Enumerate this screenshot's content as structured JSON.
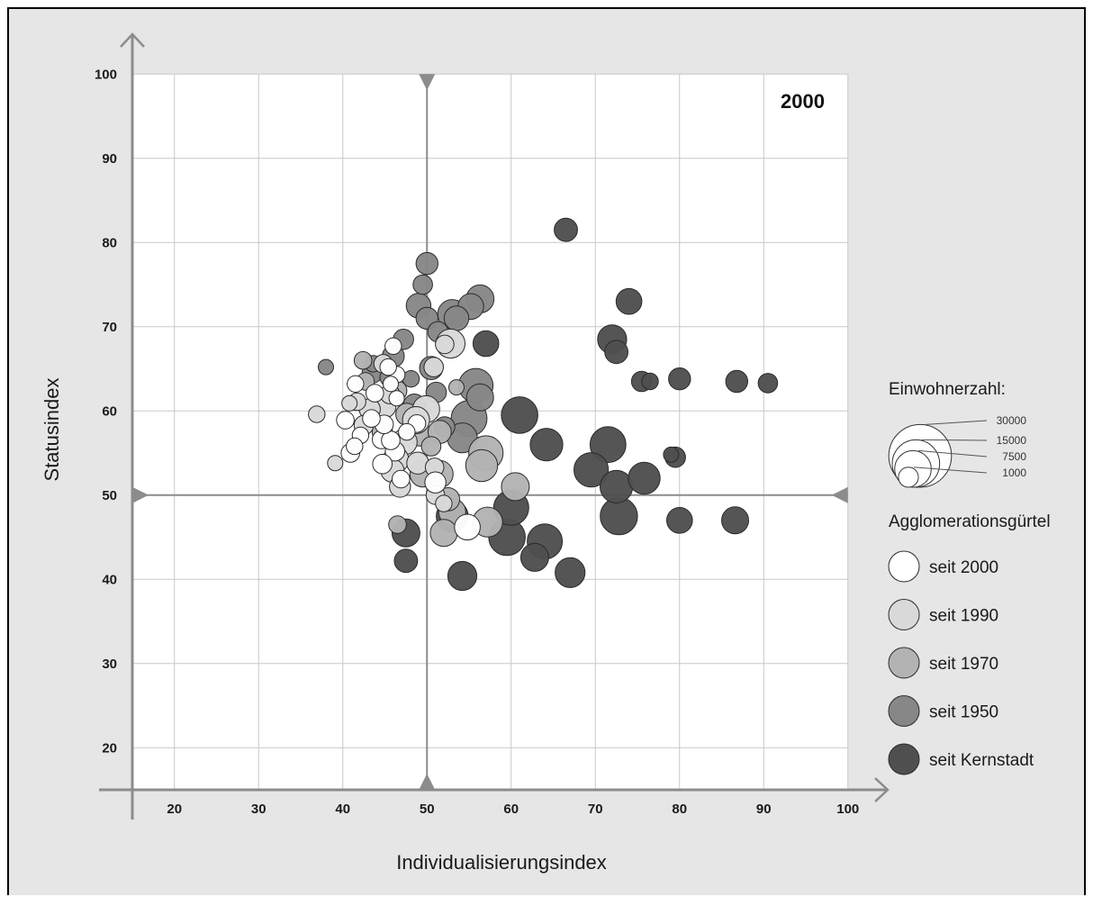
{
  "chart_data": {
    "type": "scatter",
    "subtype": "bubble",
    "year_label": "2000",
    "xlabel": "Individualisierungsindex",
    "ylabel": "Statusindex",
    "xlim": [
      15,
      100
    ],
    "ylim": [
      15,
      100
    ],
    "x_ticks": [
      20,
      30,
      40,
      50,
      60,
      70,
      80,
      90,
      100
    ],
    "y_ticks": [
      20,
      30,
      40,
      50,
      60,
      70,
      80,
      90,
      100
    ],
    "center_lines": {
      "x": 50,
      "y": 50
    },
    "grid": true,
    "colors": {
      "seit 2000": "#ffffff",
      "seit 1990": "#d9d9d9",
      "seit 1970": "#b3b3b3",
      "seit 1950": "#878787",
      "seit Kernstadt": "#4f4f4f"
    },
    "size_legend": {
      "title": "Einwohnerzahl:",
      "values": [
        30000,
        15000,
        7500,
        1000
      ]
    },
    "color_legend": {
      "title": "Agglomerationsgürtel",
      "entries": [
        "seit 2000",
        "seit 1990",
        "seit 1970",
        "seit 1950",
        "seit Kernstadt"
      ]
    },
    "series": [
      {
        "name": "seit Kernstadt",
        "points": [
          {
            "x": 66.5,
            "y": 81.5,
            "pop": 6000
          },
          {
            "x": 74,
            "y": 73,
            "pop": 8000
          },
          {
            "x": 72,
            "y": 68.5,
            "pop": 11000
          },
          {
            "x": 72.5,
            "y": 67,
            "pop": 6000
          },
          {
            "x": 57,
            "y": 68,
            "pop": 8000
          },
          {
            "x": 75.5,
            "y": 63.5,
            "pop": 4000
          },
          {
            "x": 76.5,
            "y": 63.5,
            "pop": 2000
          },
          {
            "x": 80,
            "y": 63.8,
            "pop": 5000
          },
          {
            "x": 86.8,
            "y": 63.5,
            "pop": 5000
          },
          {
            "x": 90.5,
            "y": 63.3,
            "pop": 3500
          },
          {
            "x": 61,
            "y": 59.5,
            "pop": 20000
          },
          {
            "x": 64.2,
            "y": 56,
            "pop": 15000
          },
          {
            "x": 71.5,
            "y": 56,
            "pop": 19000
          },
          {
            "x": 69.5,
            "y": 53,
            "pop": 17000
          },
          {
            "x": 75.8,
            "y": 52,
            "pop": 14000
          },
          {
            "x": 72.5,
            "y": 51,
            "pop": 15000
          },
          {
            "x": 79.5,
            "y": 54.5,
            "pop": 4000
          },
          {
            "x": 79,
            "y": 54.8,
            "pop": 1500
          },
          {
            "x": 72.8,
            "y": 47.5,
            "pop": 21000
          },
          {
            "x": 80,
            "y": 47,
            "pop": 8000
          },
          {
            "x": 86.6,
            "y": 47,
            "pop": 9000
          },
          {
            "x": 60,
            "y": 48.5,
            "pop": 18000
          },
          {
            "x": 59.5,
            "y": 45,
            "pop": 20000
          },
          {
            "x": 64,
            "y": 44.5,
            "pop": 18000
          },
          {
            "x": 62.8,
            "y": 42.6,
            "pop": 10000
          },
          {
            "x": 67,
            "y": 40.8,
            "pop": 12000
          },
          {
            "x": 54.2,
            "y": 40.4,
            "pop": 11000
          },
          {
            "x": 47.5,
            "y": 45.5,
            "pop": 10000
          },
          {
            "x": 47.5,
            "y": 42.2,
            "pop": 6000
          },
          {
            "x": 53,
            "y": 47.5,
            "pop": 14000
          }
        ]
      },
      {
        "name": "seit 1950",
        "points": [
          {
            "x": 50,
            "y": 77.5,
            "pop": 5000
          },
          {
            "x": 49.5,
            "y": 75,
            "pop": 3500
          },
          {
            "x": 49,
            "y": 72.5,
            "pop": 7000
          },
          {
            "x": 50,
            "y": 71,
            "pop": 5000
          },
          {
            "x": 53,
            "y": 71.5,
            "pop": 11000
          },
          {
            "x": 56.3,
            "y": 73.3,
            "pop": 10000
          },
          {
            "x": 55.2,
            "y": 72.4,
            "pop": 8000
          },
          {
            "x": 53.5,
            "y": 71,
            "pop": 7000
          },
          {
            "x": 51.3,
            "y": 69.4,
            "pop": 4000
          },
          {
            "x": 47.2,
            "y": 68.5,
            "pop": 4000
          },
          {
            "x": 46,
            "y": 66.5,
            "pop": 5000
          },
          {
            "x": 50.5,
            "y": 65.1,
            "pop": 6000
          },
          {
            "x": 55.8,
            "y": 63,
            "pop": 17000
          },
          {
            "x": 56.3,
            "y": 61.6,
            "pop": 9000
          },
          {
            "x": 55,
            "y": 59.1,
            "pop": 19000
          },
          {
            "x": 54.2,
            "y": 56.8,
            "pop": 12000
          },
          {
            "x": 51.1,
            "y": 62.2,
            "pop": 4000
          },
          {
            "x": 52.1,
            "y": 58.1,
            "pop": 4000
          },
          {
            "x": 48.5,
            "y": 60.7,
            "pop": 5000
          },
          {
            "x": 48.1,
            "y": 63.8,
            "pop": 2000
          },
          {
            "x": 43.6,
            "y": 65.6,
            "pop": 2000
          },
          {
            "x": 43.5,
            "y": 64.5,
            "pop": 4000
          },
          {
            "x": 38,
            "y": 65.2,
            "pop": 1500
          },
          {
            "x": 45.5,
            "y": 64,
            "pop": 3000
          }
        ]
      },
      {
        "name": "seit 1970",
        "points": [
          {
            "x": 57,
            "y": 55,
            "pop": 17000
          },
          {
            "x": 56.5,
            "y": 53.5,
            "pop": 14000
          },
          {
            "x": 60.5,
            "y": 51,
            "pop": 10000
          },
          {
            "x": 57.2,
            "y": 46.8,
            "pop": 12000
          },
          {
            "x": 53,
            "y": 48,
            "pop": 9000
          },
          {
            "x": 52,
            "y": 45.5,
            "pop": 9000
          },
          {
            "x": 51.5,
            "y": 52.5,
            "pop": 9000
          },
          {
            "x": 49.5,
            "y": 52.5,
            "pop": 8000
          },
          {
            "x": 52.5,
            "y": 49.5,
            "pop": 6000
          },
          {
            "x": 49.2,
            "y": 57.2,
            "pop": 6000
          },
          {
            "x": 47.6,
            "y": 59.6,
            "pop": 5000
          },
          {
            "x": 46.4,
            "y": 62.4,
            "pop": 4000
          },
          {
            "x": 44.7,
            "y": 57.5,
            "pop": 4000
          },
          {
            "x": 46.5,
            "y": 46.5,
            "pop": 2500
          },
          {
            "x": 53.5,
            "y": 62.8,
            "pop": 1500
          },
          {
            "x": 42.7,
            "y": 63.5,
            "pop": 2500
          },
          {
            "x": 42.4,
            "y": 66,
            "pop": 2500
          },
          {
            "x": 51.5,
            "y": 57.5,
            "pop": 6000
          },
          {
            "x": 50.5,
            "y": 55.8,
            "pop": 3500
          }
        ]
      },
      {
        "name": "seit 1990",
        "points": [
          {
            "x": 52.8,
            "y": 68,
            "pop": 11000
          },
          {
            "x": 52.1,
            "y": 67.9,
            "pop": 3000
          },
          {
            "x": 49.9,
            "y": 60.2,
            "pop": 9000
          },
          {
            "x": 48.7,
            "y": 58.9,
            "pop": 9000
          },
          {
            "x": 47.3,
            "y": 56.3,
            "pop": 8000
          },
          {
            "x": 46.3,
            "y": 54.2,
            "pop": 8000
          },
          {
            "x": 45.9,
            "y": 52.9,
            "pop": 6000
          },
          {
            "x": 46.8,
            "y": 51,
            "pop": 4500
          },
          {
            "x": 48.9,
            "y": 53.8,
            "pop": 5000
          },
          {
            "x": 50.9,
            "y": 53.3,
            "pop": 3000
          },
          {
            "x": 51,
            "y": 50,
            "pop": 3000
          },
          {
            "x": 52,
            "y": 49,
            "pop": 2000
          },
          {
            "x": 45,
            "y": 60.5,
            "pop": 5000
          },
          {
            "x": 43.2,
            "y": 60.2,
            "pop": 4500
          },
          {
            "x": 42.5,
            "y": 58.3,
            "pop": 3500
          },
          {
            "x": 41.7,
            "y": 61.1,
            "pop": 2500
          },
          {
            "x": 40.8,
            "y": 60.9,
            "pop": 1500
          },
          {
            "x": 36.9,
            "y": 59.6,
            "pop": 2000
          },
          {
            "x": 39.1,
            "y": 53.8,
            "pop": 1500
          },
          {
            "x": 44.8,
            "y": 65.6,
            "pop": 3000
          },
          {
            "x": 45.6,
            "y": 62,
            "pop": 3500
          },
          {
            "x": 50.8,
            "y": 65.2,
            "pop": 3500
          }
        ]
      },
      {
        "name": "seit 2000",
        "points": [
          {
            "x": 54.8,
            "y": 46.2,
            "pop": 8000
          },
          {
            "x": 51,
            "y": 51.5,
            "pop": 4500
          },
          {
            "x": 46.9,
            "y": 51.9,
            "pop": 2500
          },
          {
            "x": 46.2,
            "y": 55.2,
            "pop": 3500
          },
          {
            "x": 44.7,
            "y": 53.7,
            "pop": 3500
          },
          {
            "x": 44.6,
            "y": 56.6,
            "pop": 3000
          },
          {
            "x": 45.7,
            "y": 56.5,
            "pop": 3000
          },
          {
            "x": 44.9,
            "y": 58.4,
            "pop": 3000
          },
          {
            "x": 43.4,
            "y": 59.1,
            "pop": 2500
          },
          {
            "x": 42.1,
            "y": 57.1,
            "pop": 2000
          },
          {
            "x": 40.9,
            "y": 55,
            "pop": 3000
          },
          {
            "x": 41.4,
            "y": 55.8,
            "pop": 2000
          },
          {
            "x": 40.3,
            "y": 58.9,
            "pop": 2500
          },
          {
            "x": 41.5,
            "y": 63.2,
            "pop": 2000
          },
          {
            "x": 46,
            "y": 67.7,
            "pop": 2000
          },
          {
            "x": 46.4,
            "y": 64.3,
            "pop": 2000
          },
          {
            "x": 45.4,
            "y": 65.2,
            "pop": 2000
          },
          {
            "x": 46.4,
            "y": 61.5,
            "pop": 1500
          },
          {
            "x": 45.7,
            "y": 63.2,
            "pop": 1500
          },
          {
            "x": 48.8,
            "y": 58.5,
            "pop": 2500
          },
          {
            "x": 47.6,
            "y": 57.5,
            "pop": 2000
          },
          {
            "x": 43.8,
            "y": 62.1,
            "pop": 2500
          }
        ]
      }
    ]
  }
}
